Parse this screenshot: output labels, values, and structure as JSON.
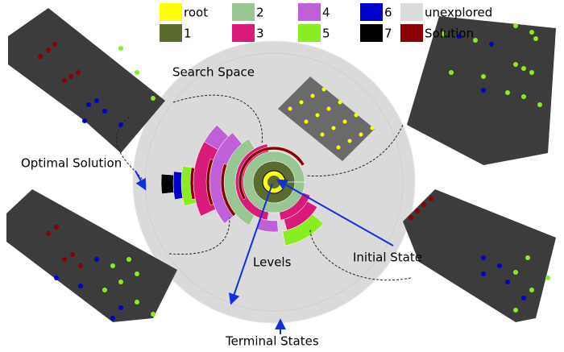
{
  "legend": [
    {
      "label": "root",
      "color": "#ffff00"
    },
    {
      "label": "2",
      "color": "#99c794"
    },
    {
      "label": "4",
      "color": "#c060d8"
    },
    {
      "label": "6",
      "color": "#0000cc"
    },
    {
      "label": "unexplored",
      "color": "#dcdcdc"
    },
    {
      "label": "1",
      "color": "#5a6b30"
    },
    {
      "label": "3",
      "color": "#d81b7a"
    },
    {
      "label": "5",
      "color": "#88ee22"
    },
    {
      "label": "7",
      "color": "#000000"
    },
    {
      "label": "Solution",
      "color": "#8b0000"
    }
  ],
  "annotations": {
    "search_space": "Search Space",
    "optimal_solution": "Optimal Solution",
    "levels": "Levels",
    "initial_state": "Initial State",
    "terminal_states": "Terminal States"
  }
}
